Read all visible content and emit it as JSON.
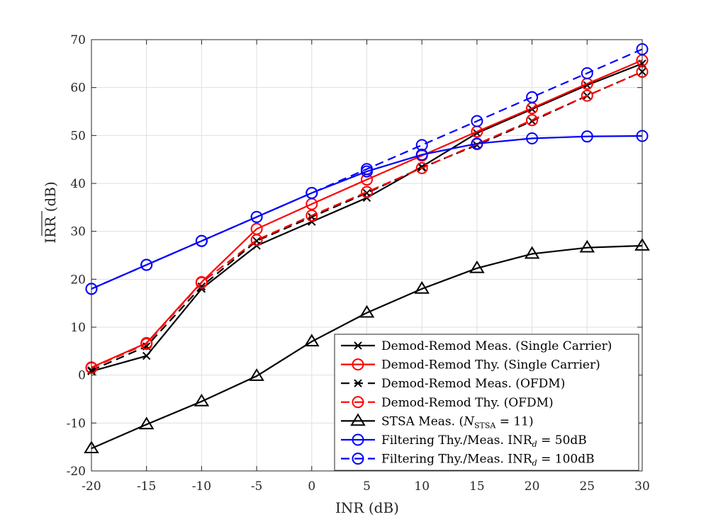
{
  "chart_data": {
    "type": "line",
    "xlabel": "INR (dB)",
    "ylabel": "IRR (dB)",
    "xlim": [
      -20,
      30
    ],
    "ylim": [
      -20,
      70
    ],
    "grid": true,
    "legend_position": "bottom-right",
    "x_ticks": [
      {
        "value": -20,
        "label": "-20"
      },
      {
        "value": -15,
        "label": "-15"
      },
      {
        "value": -10,
        "label": "-10"
      },
      {
        "value": -5,
        "label": "-5"
      },
      {
        "value": 0,
        "label": "0"
      },
      {
        "value": 5,
        "label": "5"
      },
      {
        "value": 10,
        "label": "10"
      },
      {
        "value": 15,
        "label": "15"
      },
      {
        "value": 20,
        "label": "20"
      },
      {
        "value": 25,
        "label": "25"
      },
      {
        "value": 30,
        "label": "30"
      }
    ],
    "y_ticks": [
      {
        "value": -20,
        "label": "-20"
      },
      {
        "value": -10,
        "label": "-10"
      },
      {
        "value": 0,
        "label": "0"
      },
      {
        "value": 10,
        "label": "10"
      },
      {
        "value": 20,
        "label": "20"
      },
      {
        "value": 30,
        "label": "30"
      },
      {
        "value": 40,
        "label": "40"
      },
      {
        "value": 50,
        "label": "50"
      },
      {
        "value": 60,
        "label": "60"
      },
      {
        "value": 70,
        "label": "70"
      }
    ],
    "series": [
      {
        "name": "Demod-Remod Meas. (Single Carrier)",
        "id": "dr-meas-sc",
        "color": "#000000",
        "dash": "solid",
        "marker": "x",
        "x": [
          -20,
          -15,
          -10,
          -5,
          0,
          5,
          10,
          15,
          20,
          25,
          30
        ],
        "y": [
          0.8,
          4,
          18,
          27,
          32,
          37,
          43.5,
          50.5,
          55.5,
          60.5,
          65
        ]
      },
      {
        "name": "Demod-Remod Thy. (Single Carrier)",
        "id": "dr-thy-sc",
        "color": "#ff0000",
        "dash": "solid",
        "marker": "o",
        "x": [
          -20,
          -15,
          -10,
          -5,
          0,
          5,
          10,
          15,
          20,
          25,
          30
        ],
        "y": [
          1.6,
          6.7,
          19.4,
          30.5,
          35.7,
          40.8,
          45.8,
          50.8,
          55.7,
          60.8,
          65.7
        ]
      },
      {
        "name": "Demod-Remod Meas. (OFDM)",
        "id": "dr-meas-ofdm",
        "color": "#000000",
        "dash": "dashed",
        "marker": "x",
        "x": [
          -20,
          -15,
          -10,
          -5,
          0,
          5,
          10,
          15,
          20,
          25,
          30
        ],
        "y": [
          1,
          6,
          18.5,
          28,
          33,
          38,
          43.3,
          48,
          53,
          58.3,
          63.3
        ]
      },
      {
        "name": "Demod-Remod Thy. (OFDM)",
        "id": "dr-thy-ofdm",
        "color": "#ff0000",
        "dash": "dashed",
        "marker": "o",
        "x": [
          -20,
          -15,
          -10,
          -5,
          0,
          5,
          10,
          15,
          20,
          25,
          30
        ],
        "y": [
          1.5,
          6.5,
          19.3,
          28.2,
          33.3,
          38.2,
          43.2,
          48.2,
          53.2,
          58.3,
          63.3
        ]
      },
      {
        "name": "STSA Meas.",
        "name_suffix": " = 11)",
        "name_prefix": "STSA Meas. (",
        "name_var": "N",
        "name_sub": "STSA",
        "id": "stsa-meas",
        "color": "#000000",
        "dash": "solid",
        "marker": "triangle",
        "x": [
          -20,
          -15,
          -10,
          -5,
          0,
          5,
          10,
          15,
          20,
          25,
          30
        ],
        "y": [
          -15.3,
          -10.3,
          -5.5,
          -0.2,
          7,
          13,
          18,
          22.3,
          25.3,
          26.6,
          27
        ]
      },
      {
        "name": "Filtering Thy./Meas. INRd = 50dB",
        "name_prefix": "Filtering Thy./Meas. INR",
        "name_sub": "d",
        "name_suffix": " = 50dB",
        "id": "filt-50",
        "color": "#0000ff",
        "dash": "solid",
        "marker": "o",
        "x": [
          -20,
          -15,
          -10,
          -5,
          0,
          5,
          10,
          15,
          20,
          25,
          30
        ],
        "y": [
          18,
          23,
          28,
          33,
          38,
          42.5,
          46,
          48.3,
          49.4,
          49.8,
          49.9
        ]
      },
      {
        "name": "Filtering Thy./Meas. INRd = 100dB",
        "name_prefix": "Filtering Thy./Meas. INR",
        "name_sub": "d",
        "name_suffix": " = 100dB",
        "id": "filt-100",
        "color": "#0000ff",
        "dash": "dashed",
        "marker": "o",
        "x": [
          -20,
          -15,
          -10,
          -5,
          0,
          5,
          10,
          15,
          20,
          25,
          30
        ],
        "y": [
          18,
          23,
          28,
          33,
          38,
          43,
          48,
          53,
          58,
          63,
          68
        ]
      }
    ]
  }
}
